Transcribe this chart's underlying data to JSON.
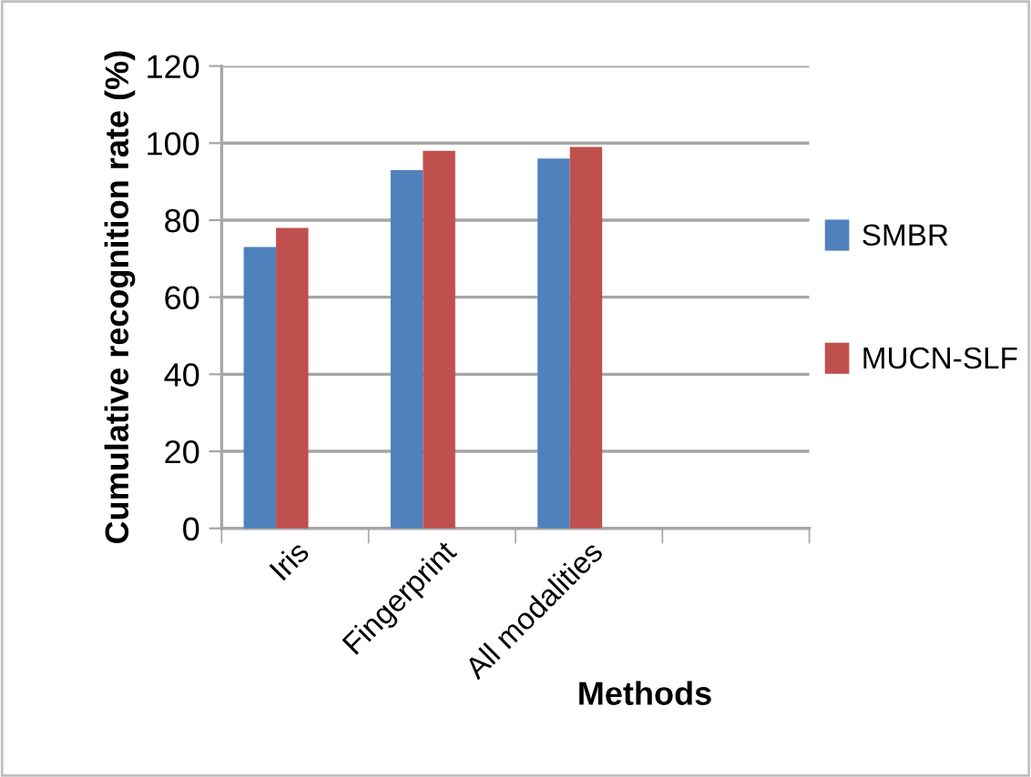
{
  "chart_data": {
    "type": "bar",
    "categories": [
      "Iris",
      "Fingerprint",
      "All modalities",
      null
    ],
    "series": [
      {
        "name": "SMBR",
        "color": "#4f81bd",
        "values": [
          73,
          93,
          96,
          null
        ]
      },
      {
        "name": "MUCN-SLF",
        "color": "#c0504d",
        "values": [
          78,
          98,
          99,
          null
        ]
      }
    ],
    "xlabel": "Methods",
    "ylabel": "Cumulative recognition rate (%)",
    "ylim": [
      0,
      120
    ],
    "yticks": [
      0,
      20,
      40,
      60,
      80,
      100,
      120
    ],
    "grid": "y",
    "legend": "right"
  }
}
